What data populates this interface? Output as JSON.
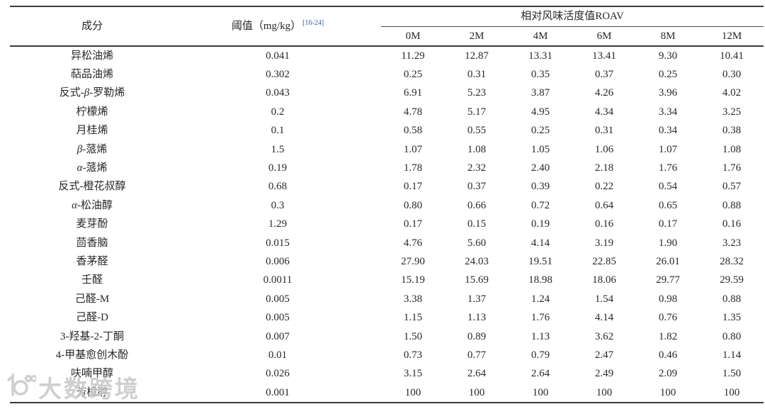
{
  "table": {
    "col_component": "成分",
    "col_threshold": "阈值（mg/kg）",
    "threshold_citation": "[16-24]",
    "col_roav": "相对风味活度值ROAV",
    "months": [
      "0M",
      "2M",
      "4M",
      "6M",
      "8M",
      "12M"
    ],
    "rows": [
      {
        "name": "异松油烯",
        "threshold": "0.041",
        "values": [
          "11.29",
          "12.87",
          "13.31",
          "13.41",
          "9.30",
          "10.41"
        ]
      },
      {
        "name": "萜品油烯",
        "threshold": "0.302",
        "values": [
          "0.25",
          "0.31",
          "0.35",
          "0.37",
          "0.25",
          "0.30"
        ]
      },
      {
        "name": "反式-β-罗勒烯",
        "threshold": "0.043",
        "values": [
          "6.91",
          "5.23",
          "3.87",
          "4.26",
          "3.96",
          "4.02"
        ]
      },
      {
        "name": "柠檬烯",
        "threshold": "0.2",
        "values": [
          "4.78",
          "5.17",
          "4.95",
          "4.34",
          "3.34",
          "3.25"
        ]
      },
      {
        "name": "月桂烯",
        "threshold": "0.1",
        "values": [
          "0.58",
          "0.55",
          "0.25",
          "0.31",
          "0.34",
          "0.38"
        ]
      },
      {
        "name": "β-蒎烯",
        "threshold": "1.5",
        "values": [
          "1.07",
          "1.08",
          "1.05",
          "1.06",
          "1.07",
          "1.08"
        ]
      },
      {
        "name": "α-蒎烯",
        "threshold": "0.19",
        "values": [
          "1.78",
          "2.32",
          "2.40",
          "2.18",
          "1.76",
          "1.76"
        ]
      },
      {
        "name": "反式-橙花叔醇",
        "threshold": "0.68",
        "values": [
          "0.17",
          "0.37",
          "0.39",
          "0.22",
          "0.54",
          "0.57"
        ]
      },
      {
        "name": "α-松油醇",
        "threshold": "0.3",
        "values": [
          "0.80",
          "0.66",
          "0.72",
          "0.64",
          "0.65",
          "0.88"
        ]
      },
      {
        "name": "麦芽酚",
        "threshold": "1.29",
        "values": [
          "0.17",
          "0.15",
          "0.19",
          "0.16",
          "0.17",
          "0.16"
        ]
      },
      {
        "name": "茴香脑",
        "threshold": "0.015",
        "values": [
          "4.76",
          "5.60",
          "4.14",
          "3.19",
          "1.90",
          "3.23"
        ]
      },
      {
        "name": "香茅醛",
        "threshold": "0.006",
        "values": [
          "27.90",
          "24.03",
          "19.51",
          "22.85",
          "26.01",
          "28.32"
        ]
      },
      {
        "name": "壬醛",
        "threshold": "0.0011",
        "values": [
          "15.19",
          "15.69",
          "18.98",
          "18.06",
          "29.77",
          "29.59"
        ]
      },
      {
        "name": "己醛-M",
        "threshold": "0.005",
        "values": [
          "3.38",
          "1.37",
          "1.24",
          "1.54",
          "0.98",
          "0.88"
        ]
      },
      {
        "name": "己醛-D",
        "threshold": "0.005",
        "values": [
          "1.15",
          "1.13",
          "1.76",
          "4.14",
          "0.76",
          "1.35"
        ]
      },
      {
        "name": "3-羟基-2-丁酮",
        "threshold": "0.007",
        "values": [
          "1.50",
          "0.89",
          "1.13",
          "3.62",
          "1.82",
          "0.80"
        ]
      },
      {
        "name": "4-甲基愈创木酚",
        "threshold": "0.01",
        "values": [
          "0.73",
          "0.77",
          "0.79",
          "2.47",
          "0.46",
          "1.14"
        ]
      },
      {
        "name": "呋喃甲醇",
        "threshold": "0.026",
        "values": [
          "3.15",
          "2.64",
          "2.64",
          "2.49",
          "2.09",
          "1.50"
        ]
      },
      {
        "name": "芳樟醇",
        "threshold": "0.001",
        "values": [
          "100",
          "100",
          "100",
          "100",
          "100",
          "100"
        ]
      }
    ]
  },
  "watermark": {
    "text": "大数跨境"
  },
  "colors": {
    "citation_blue": "#2f5fa8",
    "text": "#282828",
    "rule_line": "#3a3a3a",
    "watermark_gray": "#c7c7c7"
  }
}
